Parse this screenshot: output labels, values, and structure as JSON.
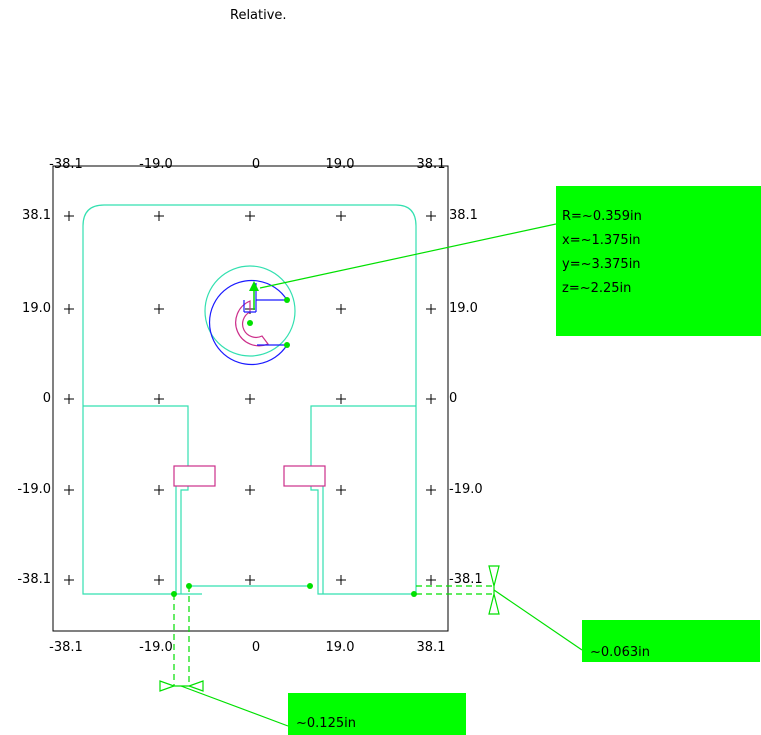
{
  "header": {
    "mode_label": "Relative."
  },
  "axes": {
    "top_labels": [
      "-38.1",
      "-19.0",
      "0",
      "19.0",
      "38.1"
    ],
    "bottom_labels": [
      "-38.1",
      "-19.0",
      "0",
      "19.0",
      "38.1"
    ],
    "left_labels": [
      "38.1",
      "19.0",
      "0",
      "-19.0",
      "-38.1"
    ],
    "right_labels": [
      "38.1",
      "19.0",
      "0",
      "-19.0",
      "-38.1"
    ]
  },
  "callouts": {
    "hole": {
      "lines": [
        "R=~0.359in",
        "x=~1.375in",
        "y=~3.375in",
        "z=~2.25in"
      ]
    },
    "gap_right": {
      "text": "~0.063in"
    },
    "gap_bottom": {
      "text": "~0.125in"
    }
  },
  "colors": {
    "outline": "#33e0b0",
    "callout_fill": "#00ff00",
    "leader": "#00e000",
    "arc_blue": "#1a1aff",
    "slot_magenta": "#cc2e8a",
    "frame": "#000000"
  }
}
